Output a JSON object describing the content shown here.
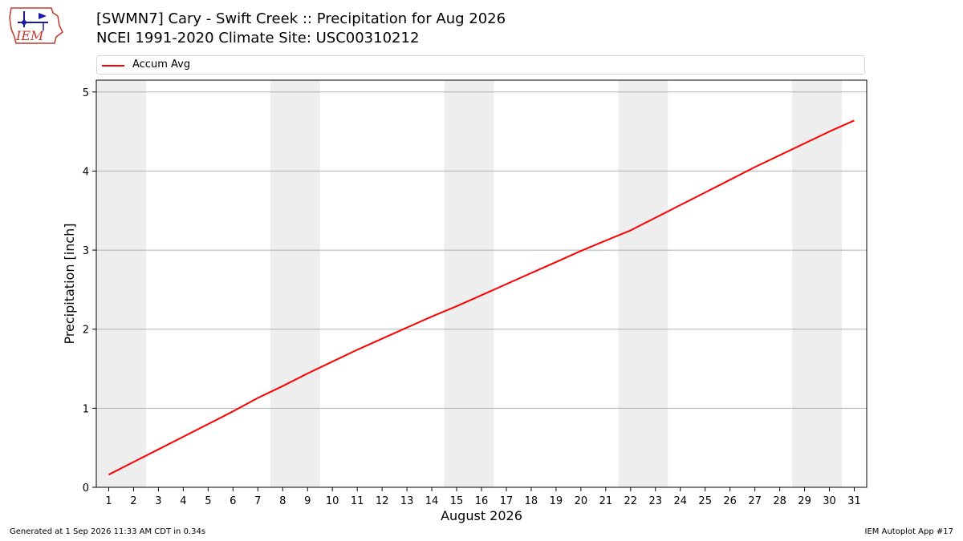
{
  "header": {
    "title": "[SWMN7] Cary - Swift Creek :: Precipitation for Aug 2026",
    "subtitle": "NCEI 1991-2020 Climate Site: USC00310212",
    "logo_text": "IEM"
  },
  "footer": {
    "generated": "Generated at 1 Sep 2026 11:33 AM CDT in 0.34s",
    "app": "IEM Autoplot App #17"
  },
  "chart_data": {
    "type": "line",
    "title": "[SWMN7] Cary - Swift Creek :: Precipitation for Aug 2026",
    "subtitle": "NCEI 1991-2020 Climate Site: USC00310212",
    "xlabel": "August 2026",
    "ylabel": "Precipitation [inch]",
    "xlim": [
      0.5,
      31.5
    ],
    "ylim": [
      0,
      5.15
    ],
    "yticks": [
      0,
      1,
      2,
      3,
      4,
      5
    ],
    "xticks": [
      1,
      2,
      3,
      4,
      5,
      6,
      7,
      8,
      9,
      10,
      11,
      12,
      13,
      14,
      15,
      16,
      17,
      18,
      19,
      20,
      21,
      22,
      23,
      24,
      25,
      26,
      27,
      28,
      29,
      30,
      31
    ],
    "grid": "y",
    "legend": "top",
    "weekend_shading": [
      [
        0.5,
        2.5
      ],
      [
        7.5,
        9.5
      ],
      [
        14.5,
        16.5
      ],
      [
        21.5,
        23.5
      ],
      [
        28.5,
        30.5
      ]
    ],
    "shading_color": "#eeeeee",
    "series": [
      {
        "name": "Accum Avg",
        "color": "#ff0000",
        "x": [
          1,
          2,
          3,
          4,
          5,
          6,
          7,
          8,
          9,
          10,
          11,
          12,
          13,
          14,
          15,
          16,
          17,
          18,
          19,
          20,
          21,
          22,
          23,
          24,
          25,
          26,
          27,
          28,
          29,
          30,
          31
        ],
        "values": [
          0.16,
          0.32,
          0.48,
          0.64,
          0.8,
          0.96,
          1.13,
          1.28,
          1.44,
          1.59,
          1.74,
          1.88,
          2.02,
          2.16,
          2.29,
          2.43,
          2.57,
          2.71,
          2.85,
          2.99,
          3.12,
          3.25,
          3.41,
          3.57,
          3.73,
          3.89,
          4.05,
          4.2,
          4.35,
          4.5,
          4.64
        ]
      }
    ]
  }
}
